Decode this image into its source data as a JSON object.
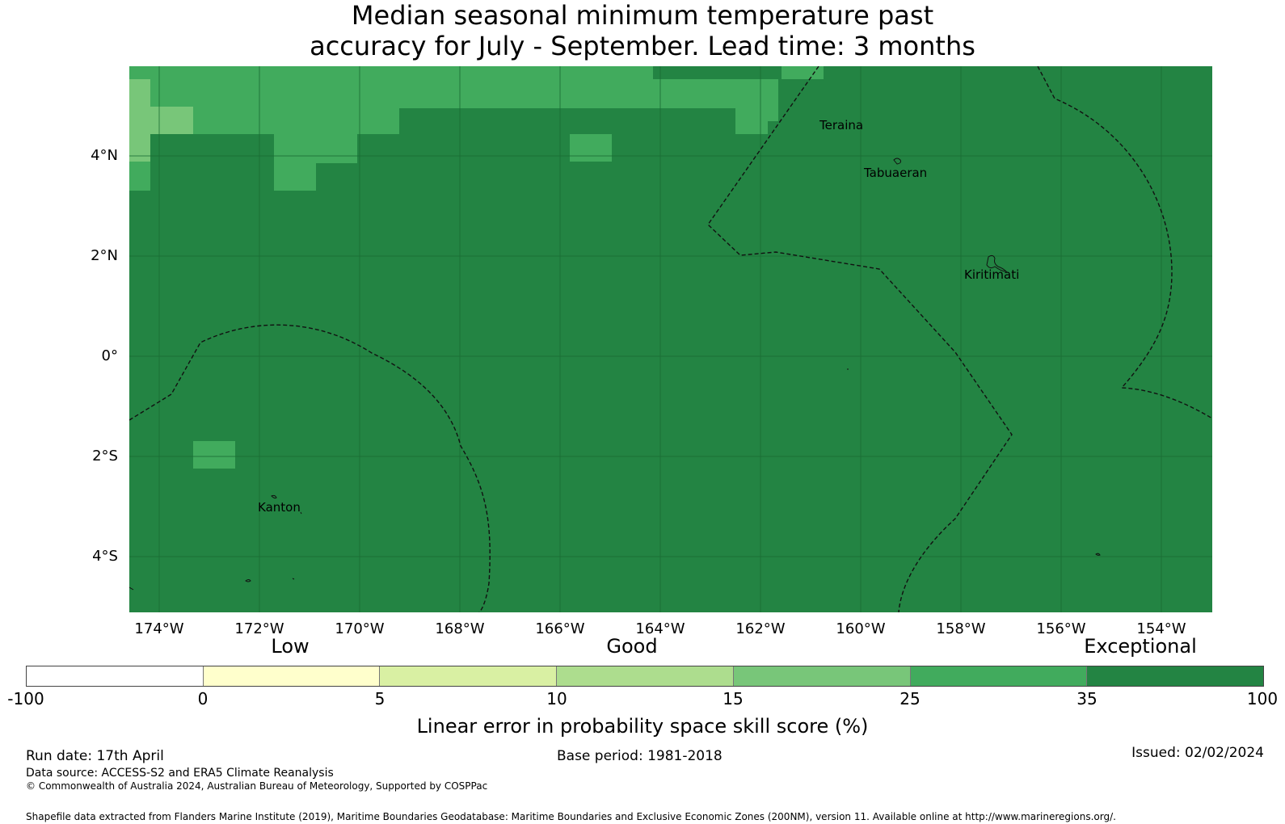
{
  "title_line1": "Median seasonal minimum temperature past",
  "title_line2": "accuracy for July - September. Lead time: 3 months",
  "map": {
    "lat_labels": [
      "4°N",
      "2°N",
      "0°",
      "2°S",
      "4°S"
    ],
    "lon_labels": [
      "174°W",
      "172°W",
      "170°W",
      "168°W",
      "166°W",
      "164°W",
      "162°W",
      "160°W",
      "158°W",
      "156°W",
      "154°W"
    ],
    "places": [
      "Teraina",
      "Tabuaeran",
      "Kiritimati",
      "Kanton"
    ],
    "colors": {
      "exceptional": "#238443",
      "cat_25_35": "#41ab5d",
      "cat_15_25": "#78c679"
    }
  },
  "colorbar": {
    "categories": [
      "Low",
      "Good",
      "Exceptional"
    ],
    "ticks": [
      "-100",
      "0",
      "5",
      "10",
      "15",
      "25",
      "35",
      "100"
    ],
    "colors": [
      "#ffffff",
      "#ffffcc",
      "#d9f0a3",
      "#addd8e",
      "#78c679",
      "#41ab5d",
      "#238443"
    ],
    "label": "Linear error in probability space skill score (%)"
  },
  "footer": {
    "run_date": "Run date: 17th April",
    "base_period": "Base period: 1981-2018",
    "issued": "Issued: 02/02/2024",
    "data_source": "Data source: ACCESS-S2 and ERA5 Climate Reanalysis",
    "copyright": "© Commonwealth of Australia 2024, Australian Bureau of Meteorology, Supported by COSPPac",
    "shapefile": "Shapefile data extracted from Flanders Marine Institute (2019), Maritime Boundaries Geodatabase: Maritime Boundaries and Exclusive Economic Zones (200NM), version 11. Available online at http://www.marineregions.org/."
  }
}
